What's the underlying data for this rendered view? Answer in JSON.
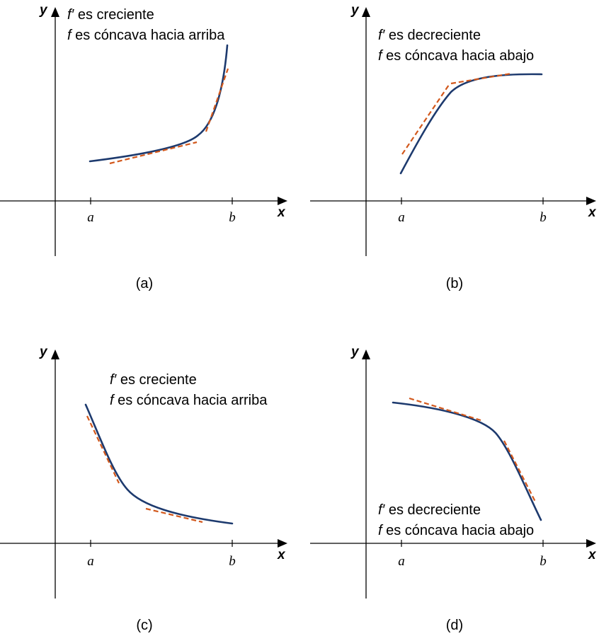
{
  "axis_labels": {
    "x": "x",
    "y": "y"
  },
  "tick_labels": {
    "a": "a",
    "b": "b"
  },
  "panels": [
    {
      "id": "a",
      "caption": "(a)",
      "line1": {
        "fn": "f′",
        "text": " es creciente"
      },
      "line2": {
        "fn": "f",
        "text": " es cóncava hacia arriba"
      }
    },
    {
      "id": "b",
      "caption": "(b)",
      "line1": {
        "fn": "f′",
        "text": " es decreciente"
      },
      "line2": {
        "fn": "f",
        "text": " es cóncava hacia abajo"
      }
    },
    {
      "id": "c",
      "caption": "(c)",
      "line1": {
        "fn": "f′",
        "text": " es creciente"
      },
      "line2": {
        "fn": "f",
        "text": " es cóncava hacia arriba"
      }
    },
    {
      "id": "d",
      "caption": "(d)",
      "line1": {
        "fn": "f′",
        "text": " es decreciente"
      },
      "line2": {
        "fn": "f",
        "text": " es cóncava hacia abajo"
      }
    }
  ],
  "colors": {
    "curve": "#1d3a6e",
    "tangent": "#d2581c",
    "axes": "#000000"
  }
}
